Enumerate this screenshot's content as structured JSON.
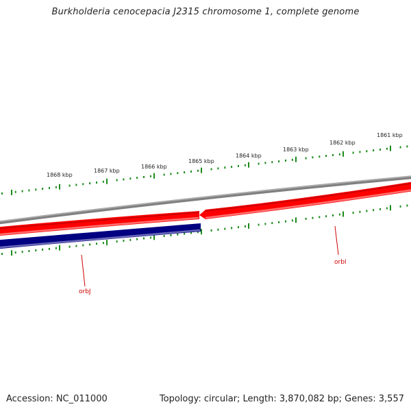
{
  "title": "Burkholderia cenocepacia J2315 chromosome 1, complete genome",
  "footer": {
    "accession": "Accession: NC_011000",
    "summary": "Topology: circular; Length: 3,870,082 bp; Genes: 3,557"
  },
  "ruler": {
    "color": "#1a8a1a",
    "major_labels": [
      "1868 kbp",
      "1867 kbp",
      "1866 kbp",
      "1865 kbp",
      "1864 kbp",
      "1863 kbp",
      "1862 kbp",
      "1861 kbp"
    ]
  },
  "tracks": {
    "backbone_color": "#808080",
    "forward_color": "#ff0000",
    "reverse_color": "#000080"
  },
  "genes": [
    {
      "name": "orbJ",
      "strand": "reverse",
      "color": "#cc0000"
    },
    {
      "name": "orbI",
      "strand": "forward",
      "color": "#cc0000"
    }
  ]
}
